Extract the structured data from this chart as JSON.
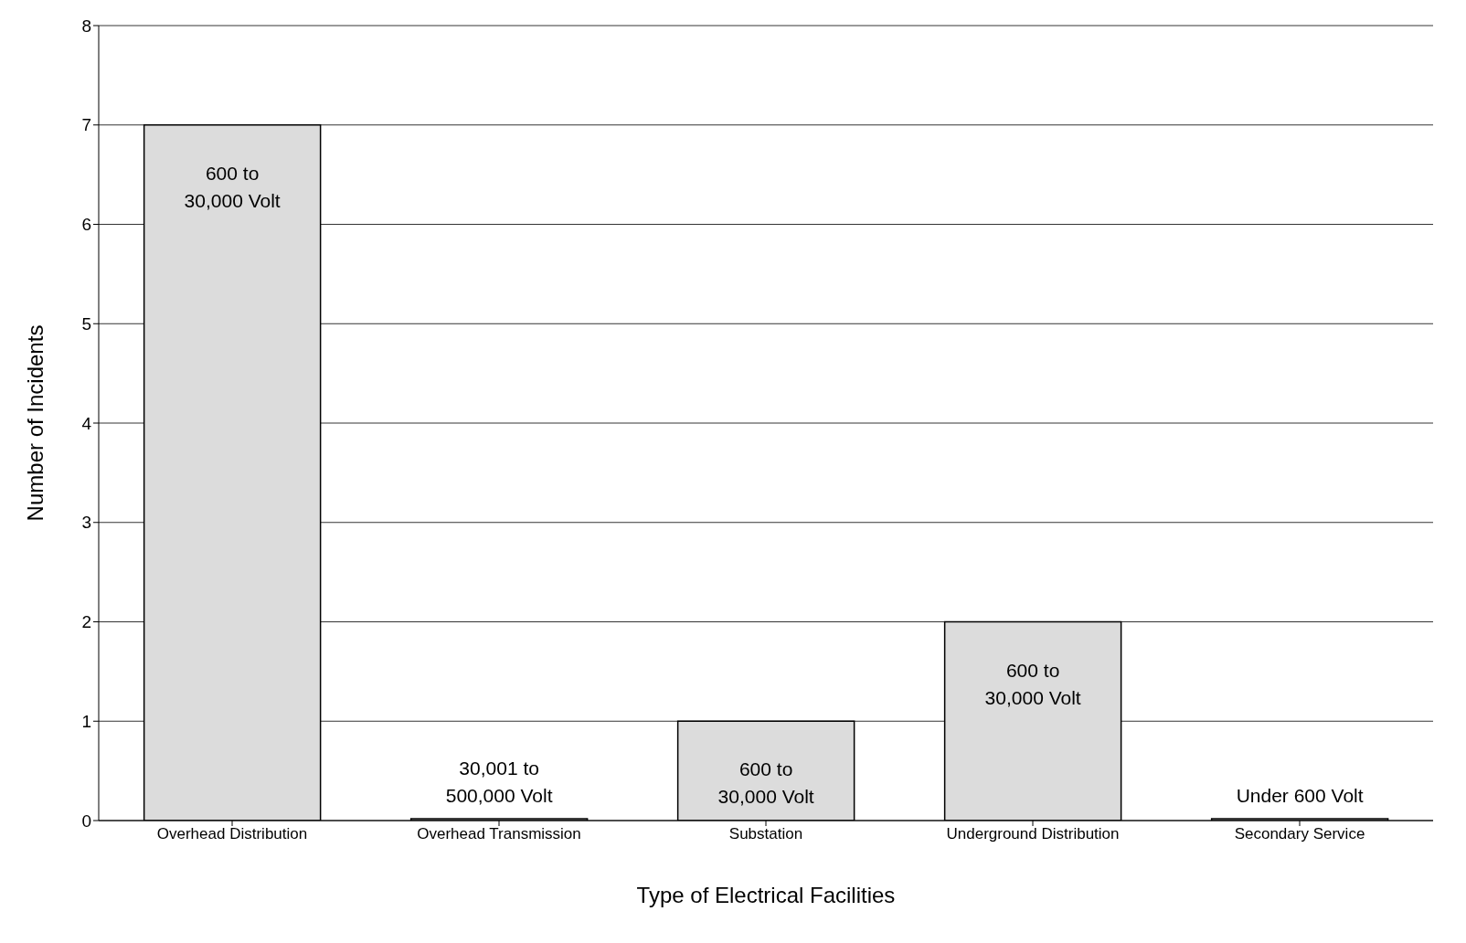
{
  "chart_data": {
    "type": "bar",
    "xlabel": "Type of Electrical Facilities",
    "ylabel": "Number of Incidents",
    "categories": [
      "Overhead Distribution",
      "Overhead Transmission",
      "Substation",
      "Underground Distribution",
      "Secondary Service"
    ],
    "values": [
      7,
      0,
      1,
      2,
      0
    ],
    "color": "#dcdcdc",
    "ylim": [
      0,
      8
    ],
    "yticks": [
      0,
      1,
      2,
      3,
      4,
      5,
      6,
      7,
      8
    ],
    "grid": "y",
    "legend": false,
    "annotations": [
      {
        "text": "600 to\n30,000 Volt",
        "x": "Overhead Distribution",
        "y": 7
      },
      {
        "text": "30,001 to\n500,000 Volt",
        "x": "Overhead Transmission",
        "y": 0
      },
      {
        "text": "600 to\n30,000 Volt",
        "x": "Substation",
        "y": 1
      },
      {
        "text": "600 to\n30,000 Volt",
        "x": "Underground Distribution",
        "y": 2
      },
      {
        "text": "Under 600 Volt",
        "x": "Secondary Service",
        "y": 0
      }
    ]
  }
}
